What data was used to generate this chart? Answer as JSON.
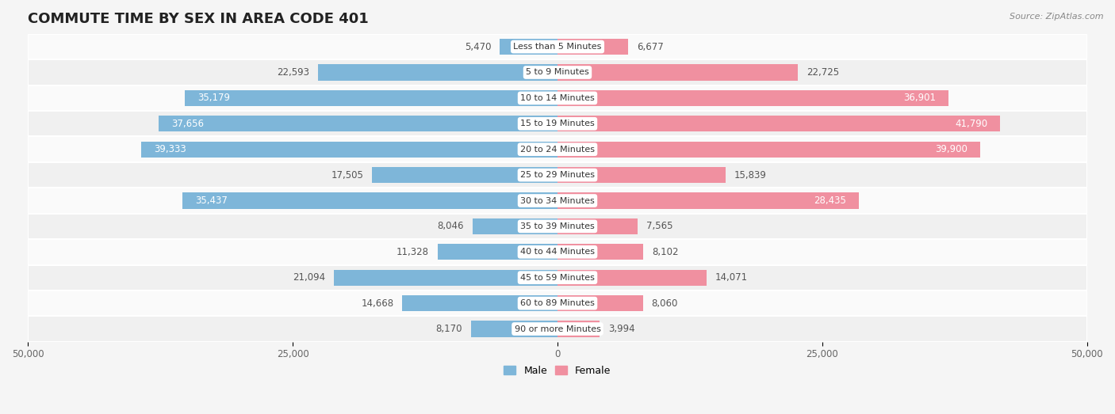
{
  "title": "COMMUTE TIME BY SEX IN AREA CODE 401",
  "source": "Source: ZipAtlas.com",
  "categories": [
    "Less than 5 Minutes",
    "5 to 9 Minutes",
    "10 to 14 Minutes",
    "15 to 19 Minutes",
    "20 to 24 Minutes",
    "25 to 29 Minutes",
    "30 to 34 Minutes",
    "35 to 39 Minutes",
    "40 to 44 Minutes",
    "45 to 59 Minutes",
    "60 to 89 Minutes",
    "90 or more Minutes"
  ],
  "male_values": [
    5470,
    22593,
    35179,
    37656,
    39333,
    17505,
    35437,
    8046,
    11328,
    21094,
    14668,
    8170
  ],
  "female_values": [
    6677,
    22725,
    36901,
    41790,
    39900,
    15839,
    28435,
    7565,
    8102,
    14071,
    8060,
    3994
  ],
  "male_color": "#7EB6D9",
  "female_color": "#F090A0",
  "bar_height": 0.62,
  "xlim": 50000,
  "background_color": "#f5f5f5",
  "row_bg_even": "#f0f0f0",
  "row_bg_odd": "#fafafa",
  "title_fontsize": 13,
  "label_fontsize": 8.5,
  "category_fontsize": 8.0,
  "tick_fontsize": 8.5,
  "legend_fontsize": 9,
  "inside_label_threshold": 28000
}
